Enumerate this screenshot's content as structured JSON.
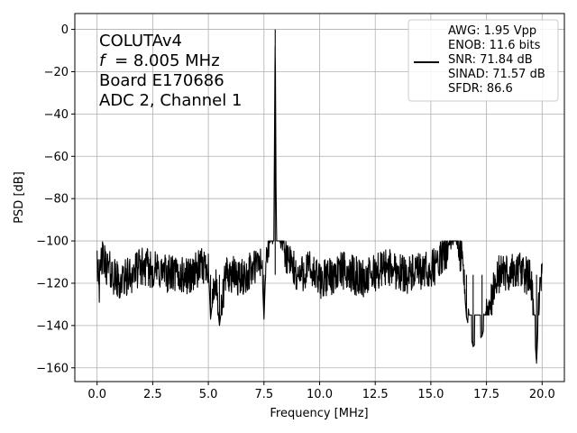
{
  "chart_data": {
    "type": "line",
    "xlabel": "Frequency [MHz]",
    "ylabel": "PSD [dB]",
    "xlim": [
      -1.0,
      21.0
    ],
    "ylim": [
      -166.5,
      7.5
    ],
    "grid": true,
    "x_ticks": [
      0.0,
      2.5,
      5.0,
      7.5,
      10.0,
      12.5,
      15.0,
      17.5,
      20.0
    ],
    "x_tick_labels": [
      "0.0",
      "2.5",
      "5.0",
      "7.5",
      "10.0",
      "12.5",
      "15.0",
      "17.5",
      "20.0"
    ],
    "y_ticks": [
      0,
      -20,
      -40,
      -60,
      -80,
      -100,
      -120,
      -140,
      -160
    ],
    "y_tick_labels": [
      "0",
      "−20",
      "−40",
      "−60",
      "−80",
      "−100",
      "−120",
      "−140",
      "−160"
    ],
    "annotation": [
      "COLUTAv4",
      "= 8.005 MHz",
      "Board E170686",
      "ADC 2, Channel 1"
    ],
    "annotation_italic_prefix": "f",
    "legend_position": "top-right",
    "legend_lines": [
      "AWG: 1.95 Vpp",
      "ENOB: 11.6 bits",
      "SNR: 71.84 dB",
      "SINAD: 71.57 dB",
      "SFDR: 86.6"
    ],
    "series": [
      {
        "color": "#000000",
        "noise_floor_db": -116,
        "noise_band_db": [
          -127,
          -104
        ],
        "points": [
          [
            0.0,
            -100
          ],
          [
            0.02,
            -116
          ],
          [
            0.05,
            -104
          ],
          [
            0.1,
            -122
          ],
          [
            0.2,
            -108
          ],
          [
            0.5,
            -113
          ],
          [
            1.0,
            -120
          ],
          [
            2.0,
            -112
          ],
          [
            3.0,
            -115
          ],
          [
            4.0,
            -117
          ],
          [
            5.0,
            -111
          ],
          [
            5.1,
            -137
          ],
          [
            5.3,
            -118
          ],
          [
            5.5,
            -140
          ],
          [
            5.8,
            -115
          ],
          [
            6.5,
            -118
          ],
          [
            7.0,
            -113
          ],
          [
            7.4,
            -110
          ],
          [
            7.5,
            -137
          ],
          [
            7.6,
            -106
          ],
          [
            7.8,
            -98
          ],
          [
            7.95,
            -88
          ],
          [
            8.005,
            0
          ],
          [
            8.05,
            -88
          ],
          [
            8.2,
            -92
          ],
          [
            8.3,
            -100
          ],
          [
            8.5,
            -107
          ],
          [
            9.0,
            -117
          ],
          [
            9.5,
            -113
          ],
          [
            10.0,
            -119
          ],
          [
            11.0,
            -114
          ],
          [
            12.0,
            -118
          ],
          [
            13.0,
            -112
          ],
          [
            14.0,
            -116
          ],
          [
            15.0,
            -114
          ],
          [
            15.5,
            -108
          ],
          [
            15.9,
            -100
          ],
          [
            16.05,
            -92
          ],
          [
            16.2,
            -102
          ],
          [
            16.4,
            -108
          ],
          [
            16.6,
            -136
          ],
          [
            16.9,
            -150
          ],
          [
            17.3,
            -145
          ],
          [
            18.0,
            -116
          ],
          [
            19.0,
            -114
          ],
          [
            19.5,
            -118
          ],
          [
            19.75,
            -158
          ],
          [
            19.9,
            -118
          ],
          [
            20.0,
            -116
          ]
        ]
      }
    ]
  }
}
